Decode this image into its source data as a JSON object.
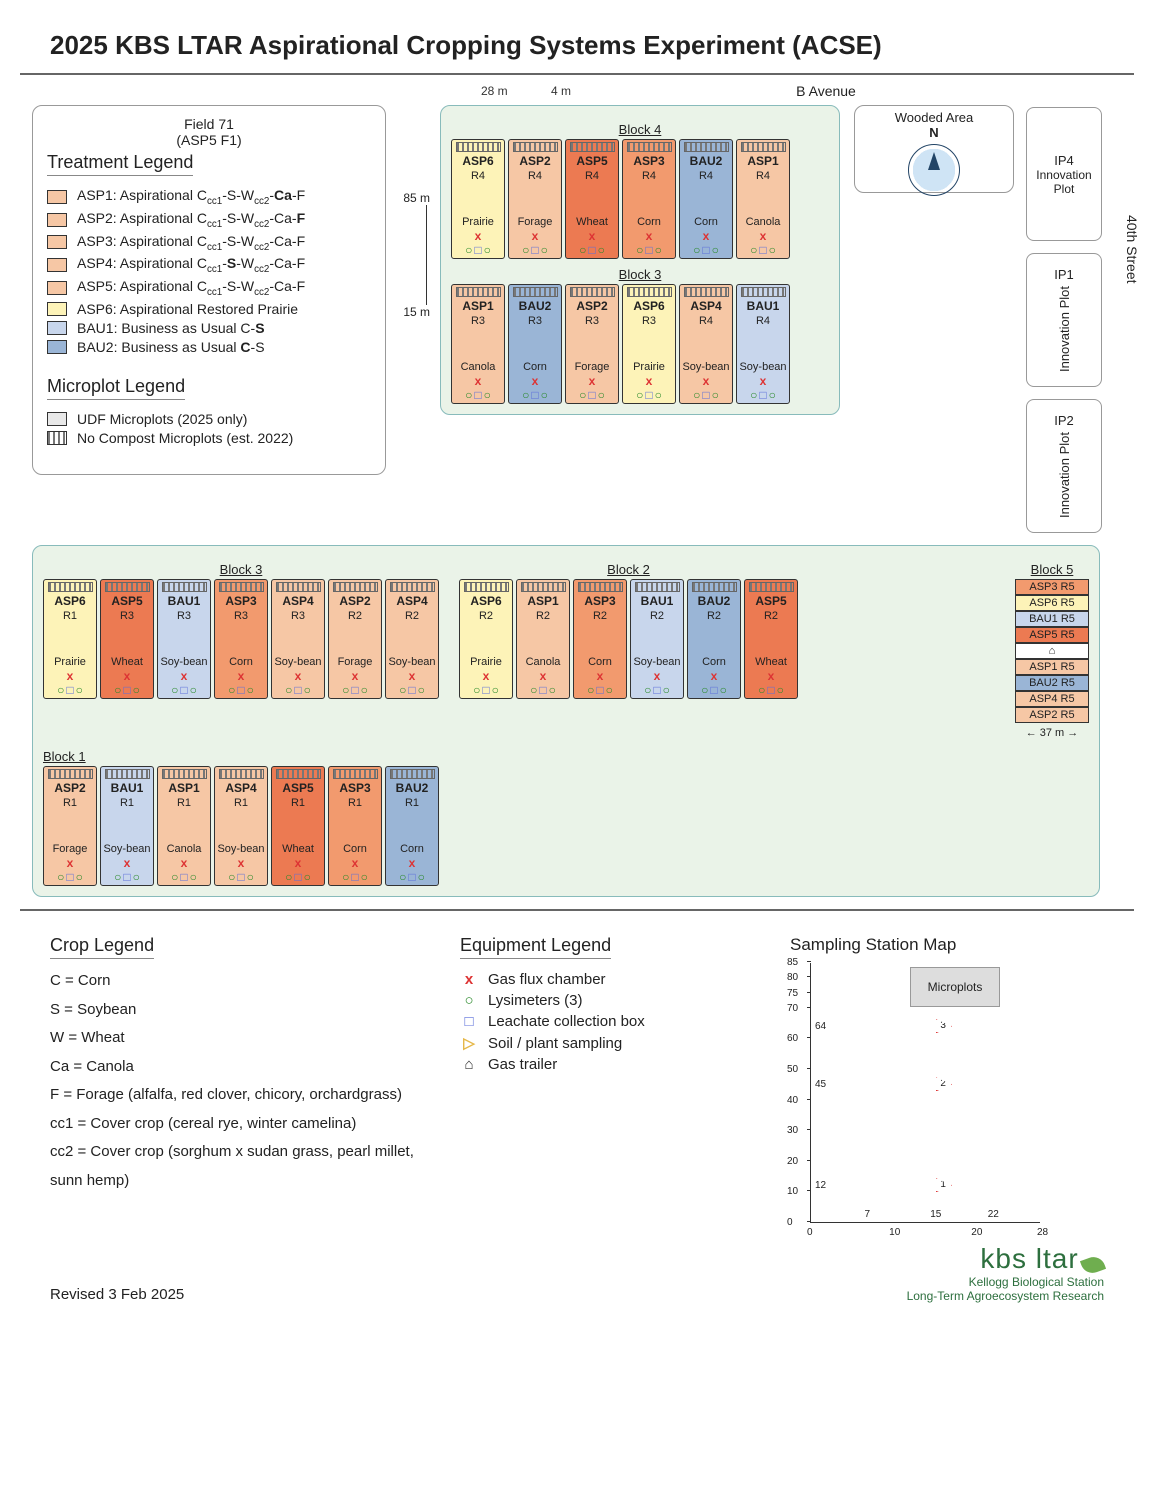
{
  "title": "2025 KBS LTAR Aspirational Cropping Systems Experiment (ACSE)",
  "b_avenue": "B Avenue",
  "street": "40th Street",
  "field71": {
    "line1": "Field 71",
    "line2": "(ASP5 F1)"
  },
  "wooded": "Wooded Area",
  "compass_n": "N",
  "ip4": {
    "id": "IP4",
    "label": "Innovation Plot"
  },
  "ip1": {
    "id": "IP1",
    "label": "Innovation Plot"
  },
  "ip2": {
    "id": "IP2",
    "label": "Innovation Plot"
  },
  "dims": {
    "w4": "4 m",
    "w28": "28 m",
    "h85": "85 m",
    "h15": "15 m",
    "w37": "37 m"
  },
  "treatment_legend_h": "Treatment Legend",
  "microplot_legend_h": "Microplot Legend",
  "treatments": [
    {
      "color": "#f6c7a5",
      "label": "ASP1: Aspirational C_cc1-S-W_cc2-Ca-F",
      "bold": "Ca"
    },
    {
      "color": "#f6c7a5",
      "label": "ASP2: Aspirational C_cc1-S-W_cc2-Ca-F",
      "bold": "F"
    },
    {
      "color": "#f6c7a5",
      "label": "ASP3: Aspirational C_cc1-S-W_cc2-Ca-F",
      "bold": "C"
    },
    {
      "color": "#f6c7a5",
      "label": "ASP4: Aspirational C_cc1-S-W_cc2-Ca-F",
      "bold": "S"
    },
    {
      "color": "#f6c7a5",
      "label": "ASP5: Aspirational C_cc1-S-W_cc2-Ca-F",
      "bold": "W"
    },
    {
      "color": "#fdf3b8",
      "label": "ASP6: Aspirational Restored Prairie"
    },
    {
      "color": "#c8d6ec",
      "label": "BAU1: Business as Usual C-S",
      "bold": "S"
    },
    {
      "color": "#9ab5d6",
      "label": "BAU2: Business as Usual C-S",
      "bold": "C"
    }
  ],
  "microplots": [
    {
      "color": "#e8e8e8",
      "label": "UDF Microplots (2025 only)"
    },
    {
      "color": "#ffffff",
      "label": "No Compost Microplots (est. 2022)",
      "hatch": true
    }
  ],
  "colors": {
    "ASP1": "#f6c7a5",
    "ASP2": "#f6c7a5",
    "ASP3": "#f29a6e",
    "ASP4": "#f6c7a5",
    "ASP5": "#ec7a52",
    "ASP6": "#fdf3b8",
    "BAU1": "#c8d6ec",
    "BAU2": "#9ab5d6"
  },
  "block4_h": "Block 4",
  "block4": [
    {
      "nm": "ASP6",
      "rep": "R4",
      "crop": "Prairie"
    },
    {
      "nm": "ASP2",
      "rep": "R4",
      "crop": "Forage"
    },
    {
      "nm": "ASP5",
      "rep": "R4",
      "crop": "Wheat"
    },
    {
      "nm": "ASP3",
      "rep": "R4",
      "crop": "Corn"
    },
    {
      "nm": "BAU2",
      "rep": "R4",
      "crop": "Corn"
    },
    {
      "nm": "ASP1",
      "rep": "R4",
      "crop": "Canola"
    }
  ],
  "block3top_h": "Block 3",
  "block3top": [
    {
      "nm": "ASP1",
      "rep": "R3",
      "crop": "Canola"
    },
    {
      "nm": "BAU2",
      "rep": "R3",
      "crop": "Corn"
    },
    {
      "nm": "ASP2",
      "rep": "R3",
      "crop": "Forage"
    },
    {
      "nm": "ASP6",
      "rep": "R3",
      "crop": "Prairie"
    },
    {
      "nm": "ASP4",
      "rep": "R4",
      "crop": "Soy-bean"
    },
    {
      "nm": "BAU1",
      "rep": "R4",
      "crop": "Soy-bean"
    }
  ],
  "block3left_h": "Block 3",
  "block3left": [
    {
      "nm": "ASP6",
      "rep": "R1",
      "crop": "Prairie"
    },
    {
      "nm": "ASP5",
      "rep": "R3",
      "crop": "Wheat"
    },
    {
      "nm": "BAU1",
      "rep": "R3",
      "crop": "Soy-bean"
    },
    {
      "nm": "ASP3",
      "rep": "R3",
      "crop": "Corn"
    },
    {
      "nm": "ASP4",
      "rep": "R3",
      "crop": "Soy-bean"
    },
    {
      "nm": "ASP2",
      "rep": "R2",
      "crop": "Forage"
    },
    {
      "nm": "ASP4",
      "rep": "R2",
      "crop": "Soy-bean"
    }
  ],
  "block2_h": "Block 2",
  "block2": [
    {
      "nm": "ASP6",
      "rep": "R2",
      "crop": "Prairie"
    },
    {
      "nm": "ASP1",
      "rep": "R2",
      "crop": "Canola"
    },
    {
      "nm": "ASP3",
      "rep": "R2",
      "crop": "Corn"
    },
    {
      "nm": "BAU1",
      "rep": "R2",
      "crop": "Soy-bean"
    },
    {
      "nm": "BAU2",
      "rep": "R2",
      "crop": "Corn"
    },
    {
      "nm": "ASP5",
      "rep": "R2",
      "crop": "Wheat"
    }
  ],
  "block1_h": "Block 1",
  "block1": [
    {
      "nm": "ASP2",
      "rep": "R1",
      "crop": "Forage"
    },
    {
      "nm": "BAU1",
      "rep": "R1",
      "crop": "Soy-bean"
    },
    {
      "nm": "ASP1",
      "rep": "R1",
      "crop": "Canola"
    },
    {
      "nm": "ASP4",
      "rep": "R1",
      "crop": "Soy-bean"
    },
    {
      "nm": "ASP5",
      "rep": "R1",
      "crop": "Wheat"
    },
    {
      "nm": "ASP3",
      "rep": "R1",
      "crop": "Corn"
    },
    {
      "nm": "BAU2",
      "rep": "R1",
      "crop": "Corn"
    }
  ],
  "block5_h": "Block 5",
  "block5": [
    {
      "nm": "ASP3 R5",
      "c": "#f29a6e"
    },
    {
      "nm": "ASP6 R5",
      "c": "#fdf3b8"
    },
    {
      "nm": "BAU1 R5",
      "c": "#c8d6ec"
    },
    {
      "nm": "ASP5 R5",
      "c": "#ec7a52"
    },
    {
      "nm": "⌂",
      "c": "#ffffff"
    },
    {
      "nm": "ASP1 R5",
      "c": "#f6c7a5"
    },
    {
      "nm": "BAU2 R5",
      "c": "#9ab5d6"
    },
    {
      "nm": "ASP4 R5",
      "c": "#f6c7a5"
    },
    {
      "nm": "ASP2 R5",
      "c": "#f6c7a5"
    }
  ],
  "crop_legend_h": "Crop Legend",
  "crop_legend": [
    "C = Corn",
    "S = Soybean",
    "W = Wheat",
    "Ca = Canola",
    "F = Forage (alfalfa, red clover, chicory, orchardgrass)",
    "cc1 = Cover crop (cereal rye, winter camelina)",
    "cc2 = Cover crop (sorghum x sudan grass, pearl millet, sunn hemp)"
  ],
  "equip_legend_h": "Equipment Legend",
  "equip": [
    {
      "sym": "x",
      "color": "#d33",
      "label": "Gas flux chamber"
    },
    {
      "sym": "○",
      "color": "#2a8a2a",
      "label": "Lysimeters (3)"
    },
    {
      "sym": "□",
      "color": "#5b6eda",
      "label": "Leachate collection box"
    },
    {
      "sym": "▷",
      "color": "#e6b84a",
      "label": "Soil / plant sampling"
    },
    {
      "sym": "⌂",
      "color": "#333",
      "label": "Gas trailer"
    }
  ],
  "sampling_h": "Sampling Station Map",
  "sampling": {
    "mp": "Microplots",
    "y_ticks": [
      0,
      10,
      20,
      30,
      40,
      50,
      60,
      70,
      75,
      80,
      85
    ],
    "y_labels_special": {
      "64": "64",
      "45": "45",
      "12": "12"
    },
    "x_ticks": [
      0,
      10,
      20,
      28
    ],
    "x_labels_special": {
      "7": "7",
      "15": "15",
      "22": "22"
    },
    "points": [
      {
        "n": "3",
        "y": 64
      },
      {
        "n": "2",
        "y": 45
      },
      {
        "n": "1",
        "y": 12
      }
    ]
  },
  "revised": "Revised 3 Feb 2025",
  "logo": {
    "big": "kbs ltar",
    "l1": "Kellogg Biological Station",
    "l2": "Long-Term Agroecosystem Research"
  }
}
